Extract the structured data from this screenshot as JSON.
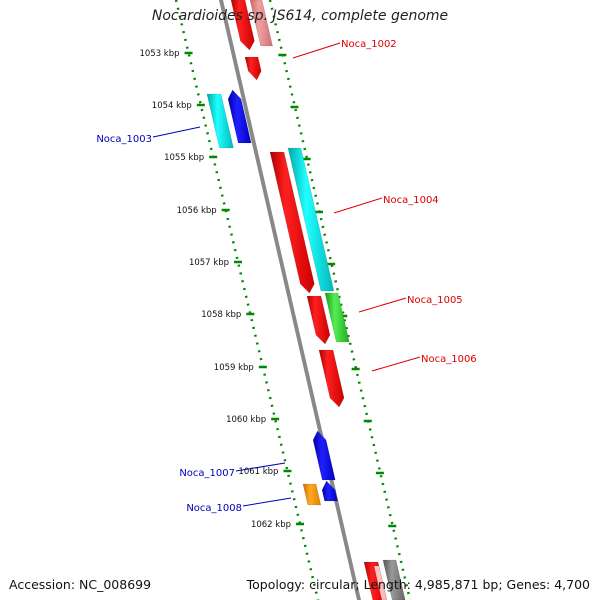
{
  "title": "Nocardioides sp. JS614, complete genome",
  "accession": "Accession: NC_008699",
  "topology": "Topology: circular; Length: 4,985,871 bp; Genes: 4,700",
  "tick_labels": [
    "1053 kbp",
    "1054 kbp",
    "1055 kbp",
    "1056 kbp",
    "1057 kbp",
    "1058 kbp",
    "1059 kbp",
    "1060 kbp",
    "1061 kbp",
    "1062 kbp"
  ],
  "gene_labels": [
    {
      "name": "Noca_1002",
      "strand": "forward",
      "color": "#dd0000"
    },
    {
      "name": "Noca_1003",
      "strand": "reverse",
      "color": "#0000bb"
    },
    {
      "name": "Noca_1004",
      "strand": "forward",
      "color": "#dd0000"
    },
    {
      "name": "Noca_1005",
      "strand": "forward",
      "color": "#dd0000"
    },
    {
      "name": "Noca_1006",
      "strand": "forward",
      "color": "#dd0000"
    },
    {
      "name": "Noca_1007",
      "strand": "reverse",
      "color": "#0000bb"
    },
    {
      "name": "Noca_1008",
      "strand": "reverse",
      "color": "#0000bb"
    }
  ],
  "feature_colors": {
    "red": "#ff0000",
    "cyan": "#00dddd",
    "blue": "#0000ee",
    "green": "#33cc33",
    "orange": "#ff9900",
    "gray": "#777777",
    "tick_green": "#008800"
  }
}
